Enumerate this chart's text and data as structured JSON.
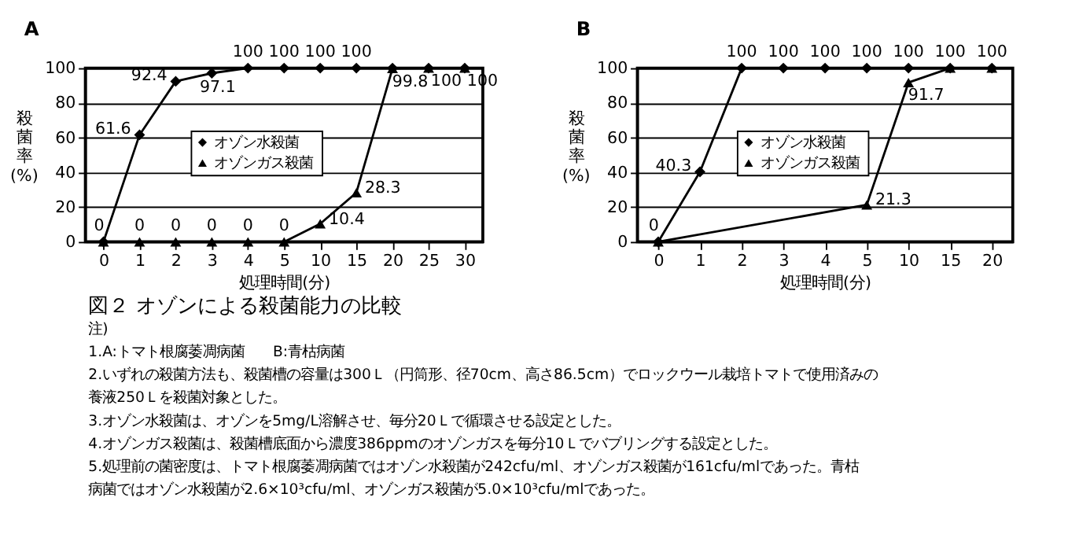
{
  "chart_data": [
    {
      "type": "line",
      "title": "A",
      "xlabel": "処理時間(分)",
      "ylabel": "殺菌率(%)",
      "categories": [
        "0",
        "1",
        "2",
        "3",
        "4",
        "5",
        "10",
        "15",
        "20",
        "25",
        "30"
      ],
      "ylim": [
        0,
        100
      ],
      "yticks": [
        0,
        20,
        40,
        60,
        80,
        100
      ],
      "grid": "y",
      "legend": "center",
      "series": [
        {
          "name": "オゾン水殺菌",
          "color": "#000000",
          "marker": "diamond",
          "values": [
            0,
            61.6,
            92.4,
            97.1,
            100,
            100,
            100,
            100,
            100,
            100,
            100
          ],
          "value_labels": [
            "0",
            "61.6",
            "92.4",
            "97.1",
            "100",
            "100",
            "100",
            "100",
            null,
            null,
            null
          ]
        },
        {
          "name": "オゾンガス殺菌",
          "color": "#000000",
          "marker": "triangle",
          "values": [
            0,
            0,
            0,
            0,
            0,
            0,
            10.4,
            28.3,
            99.8,
            100,
            100
          ],
          "value_labels": [
            null,
            "0",
            "0",
            "0",
            "0",
            "0",
            "10.4",
            "28.3",
            "99.8",
            "100",
            "100"
          ]
        }
      ]
    },
    {
      "type": "line",
      "title": "B",
      "xlabel": "処理時間(分)",
      "ylabel": "殺菌率(%)",
      "categories": [
        "0",
        "1",
        "2",
        "3",
        "4",
        "5",
        "10",
        "15",
        "20"
      ],
      "ylim": [
        0,
        100
      ],
      "yticks": [
        0,
        20,
        40,
        60,
        80,
        100
      ],
      "grid": "y",
      "legend": "center",
      "series": [
        {
          "name": "オゾン水殺菌",
          "color": "#000000",
          "marker": "diamond",
          "values": [
            0,
            40.3,
            100,
            100,
            100,
            100,
            100,
            100,
            100
          ],
          "value_labels": [
            "0",
            "40.3",
            "100",
            "100",
            "100",
            "100",
            "100",
            "100",
            "100"
          ]
        },
        {
          "name": "オゾンガス殺菌",
          "color": "#000000",
          "marker": "triangle",
          "x": [
            "0",
            "5",
            "10",
            "15",
            "20"
          ],
          "values": [
            0,
            21.3,
            91.7,
            100,
            100
          ],
          "value_labels": [
            null,
            "21.3",
            "91.7",
            null,
            null
          ]
        }
      ]
    },
    {
      "type": "other",
      "title": "図２ オゾンによる殺菌能力の比較",
      "annotations": [
        "注)",
        "1.A:トマト根腐萎凋病菌　　B:青枯病菌",
        "2.いずれの殺菌方法も、殺菌槽の容量は300Ｌ（円筒形、径70cm、高さ86.5cm）でロックウール栽培トマトで使用済みの",
        "養液250Ｌを殺菌対象とした。",
        "3.オゾン水殺菌は、オゾンを5mg/L溶解させ、毎分20Ｌで循環させる設定とした。",
        "4.オゾンガス殺菌は、殺菌槽底面から濃度386ppmのオゾンガスを毎分10Ｌでバブリングする設定とした。",
        "5.処理前の菌密度は、トマト根腐萎凋病菌ではオゾン水殺菌が242cfu/ml、オゾンガス殺菌が161cfu/mlであった。青枯",
        "病菌ではオゾン水殺菌が2.6×10³cfu/ml、オゾンガス殺菌が5.0×10³cfu/mlであった。"
      ]
    }
  ]
}
